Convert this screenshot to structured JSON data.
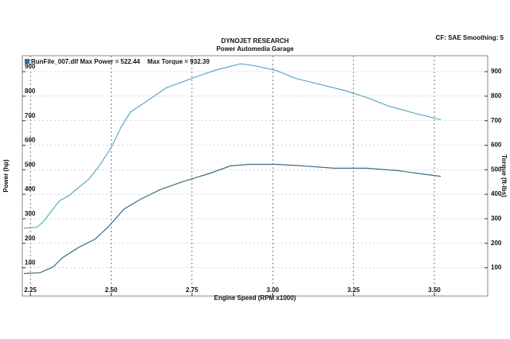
{
  "chart_data": {
    "type": "line",
    "title": "DYNOJET RESEARCH",
    "subtitle": "Power Automedia Garage",
    "settings_text": "CF: SAE  Smoothing: 5",
    "legend_text": "RunFile_007.dlf Max Power = 522.44",
    "legend_text_2": "Max Torque = 932.39",
    "xlabel": "Engine Speed (RPM x1000)",
    "ylabel": "Power (hp)",
    "y2label": "Torque (ft-lbs)",
    "xlim": [
      2.225,
      3.665
    ],
    "xticks": [
      2.25,
      {
        "value": 2.5,
        "label": "2.50"
      },
      2.75,
      {
        "value": 3.0,
        "label": "3.00"
      },
      3.25,
      {
        "value": 3.5,
        "label": "3.50"
      }
    ],
    "ylim": [
      -15,
      965
    ],
    "yticks": [
      100,
      200,
      300,
      400,
      500,
      600,
      700,
      800,
      900
    ],
    "y2lim": [
      -15,
      965
    ],
    "y2ticks": [
      100,
      200,
      300,
      400,
      500,
      600,
      700,
      800,
      900
    ],
    "grid": true,
    "legend_color": "#2a6fa8",
    "series": [
      {
        "color": "#3d6d84",
        "x": [
          2.23,
          2.28,
          2.32,
          2.35,
          2.4,
          2.45,
          2.49,
          2.54,
          2.59,
          2.65,
          2.72,
          2.8,
          2.87,
          2.93,
          3.01,
          3.09,
          3.19,
          3.29,
          3.39,
          3.46,
          3.52
        ],
        "values": [
          77,
          80,
          103,
          142,
          184,
          217,
          266,
          340,
          379,
          418,
          451,
          483,
          516,
          522,
          522,
          516,
          506,
          506,
          496,
          483,
          473
        ]
      },
      {
        "color": "#5aaac8",
        "axis": "y2",
        "x": [
          2.23,
          2.27,
          2.29,
          2.32,
          2.34,
          2.37,
          2.39,
          2.43,
          2.46,
          2.5,
          2.53,
          2.56,
          2.61,
          2.67,
          2.75,
          2.82,
          2.9,
          2.94,
          3.01,
          3.07,
          3.14,
          3.22,
          3.29,
          3.36,
          3.44,
          3.52
        ],
        "values": [
          262,
          265,
          288,
          340,
          373,
          395,
          418,
          460,
          510,
          590,
          672,
          736,
          779,
          834,
          873,
          905,
          932,
          925,
          905,
          873,
          850,
          824,
          795,
          759,
          730,
          704
        ]
      }
    ]
  }
}
